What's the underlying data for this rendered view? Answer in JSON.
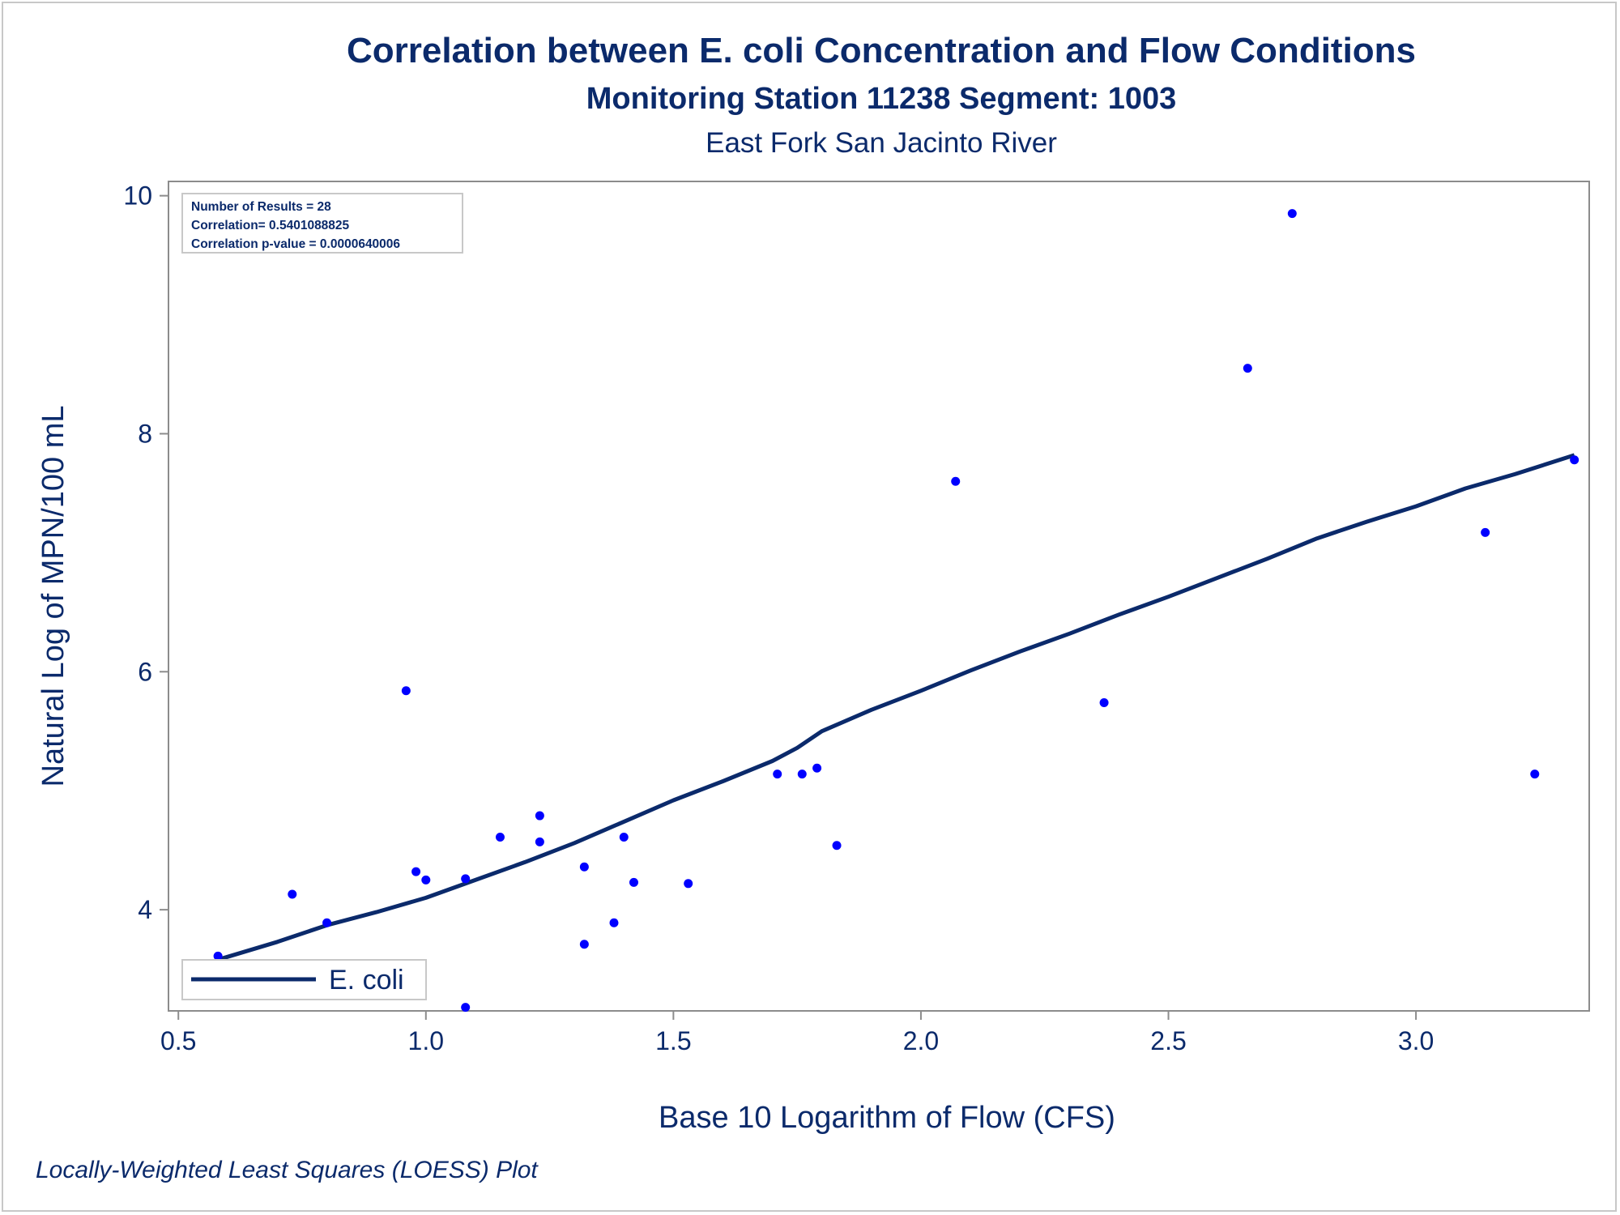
{
  "titles": {
    "main": "Correlation between E. coli Concentration and Flow Conditions",
    "sub1": "Monitoring Station 11238 Segment: 1003",
    "sub2": "East Fork San Jacinto River"
  },
  "footnote": "Locally-Weighted Least Squares (LOESS) Plot",
  "colors": {
    "text": "#0b2a6b",
    "points": "#0000ff",
    "line": "#0b2a6b",
    "frame": "#8c8c8c"
  },
  "chart_data": {
    "type": "scatter",
    "xlabel": "Base 10 Logarithm of Flow (CFS)",
    "ylabel": "Natural Log of MPN/100 mL",
    "xlim": [
      0.48,
      3.35
    ],
    "ylim": [
      3.15,
      10.12
    ],
    "xticks": [
      "0.5",
      "1.0",
      "1.5",
      "2.0",
      "2.5",
      "3.0"
    ],
    "yticks": [
      "4",
      "6",
      "8",
      "10"
    ],
    "grid": false,
    "stats": [
      "Number of Results = 28",
      "Correlation= 0.5401088825",
      "Correlation p-value = 0.0000640006"
    ],
    "legend": {
      "placement": "bottom-left",
      "entries": [
        "E. coli"
      ]
    },
    "series": [
      {
        "kind": "scatter",
        "points": [
          [
            0.58,
            3.61
          ],
          [
            0.73,
            4.13
          ],
          [
            0.8,
            3.89
          ],
          [
            0.96,
            5.84
          ],
          [
            0.98,
            4.32
          ],
          [
            1.0,
            4.25
          ],
          [
            1.08,
            4.26
          ],
          [
            1.08,
            3.18
          ],
          [
            1.15,
            4.61
          ],
          [
            1.23,
            4.79
          ],
          [
            1.23,
            4.57
          ],
          [
            1.32,
            4.36
          ],
          [
            1.32,
            3.71
          ],
          [
            1.38,
            3.89
          ],
          [
            1.4,
            4.61
          ],
          [
            1.42,
            4.23
          ],
          [
            1.53,
            4.22
          ],
          [
            1.71,
            5.14
          ],
          [
            1.76,
            5.14
          ],
          [
            1.79,
            5.19
          ],
          [
            1.83,
            4.54
          ],
          [
            2.07,
            7.6
          ],
          [
            2.37,
            5.74
          ],
          [
            2.66,
            8.55
          ],
          [
            2.75,
            9.85
          ],
          [
            3.14,
            7.17
          ],
          [
            3.24,
            5.14
          ],
          [
            3.32,
            7.78
          ]
        ]
      },
      {
        "kind": "line",
        "name": "E. coli",
        "points": [
          [
            0.58,
            3.58
          ],
          [
            0.7,
            3.73
          ],
          [
            0.8,
            3.87
          ],
          [
            0.9,
            3.98
          ],
          [
            1.0,
            4.1
          ],
          [
            1.1,
            4.25
          ],
          [
            1.2,
            4.4
          ],
          [
            1.3,
            4.56
          ],
          [
            1.4,
            4.74
          ],
          [
            1.5,
            4.92
          ],
          [
            1.6,
            5.08
          ],
          [
            1.7,
            5.25
          ],
          [
            1.75,
            5.36
          ],
          [
            1.8,
            5.5
          ],
          [
            1.9,
            5.68
          ],
          [
            2.0,
            5.84
          ],
          [
            2.1,
            6.01
          ],
          [
            2.2,
            6.17
          ],
          [
            2.3,
            6.32
          ],
          [
            2.4,
            6.48
          ],
          [
            2.5,
            6.63
          ],
          [
            2.6,
            6.79
          ],
          [
            2.7,
            6.95
          ],
          [
            2.8,
            7.12
          ],
          [
            2.9,
            7.26
          ],
          [
            3.0,
            7.39
          ],
          [
            3.1,
            7.54
          ],
          [
            3.2,
            7.66
          ],
          [
            3.32,
            7.82
          ]
        ]
      }
    ]
  }
}
